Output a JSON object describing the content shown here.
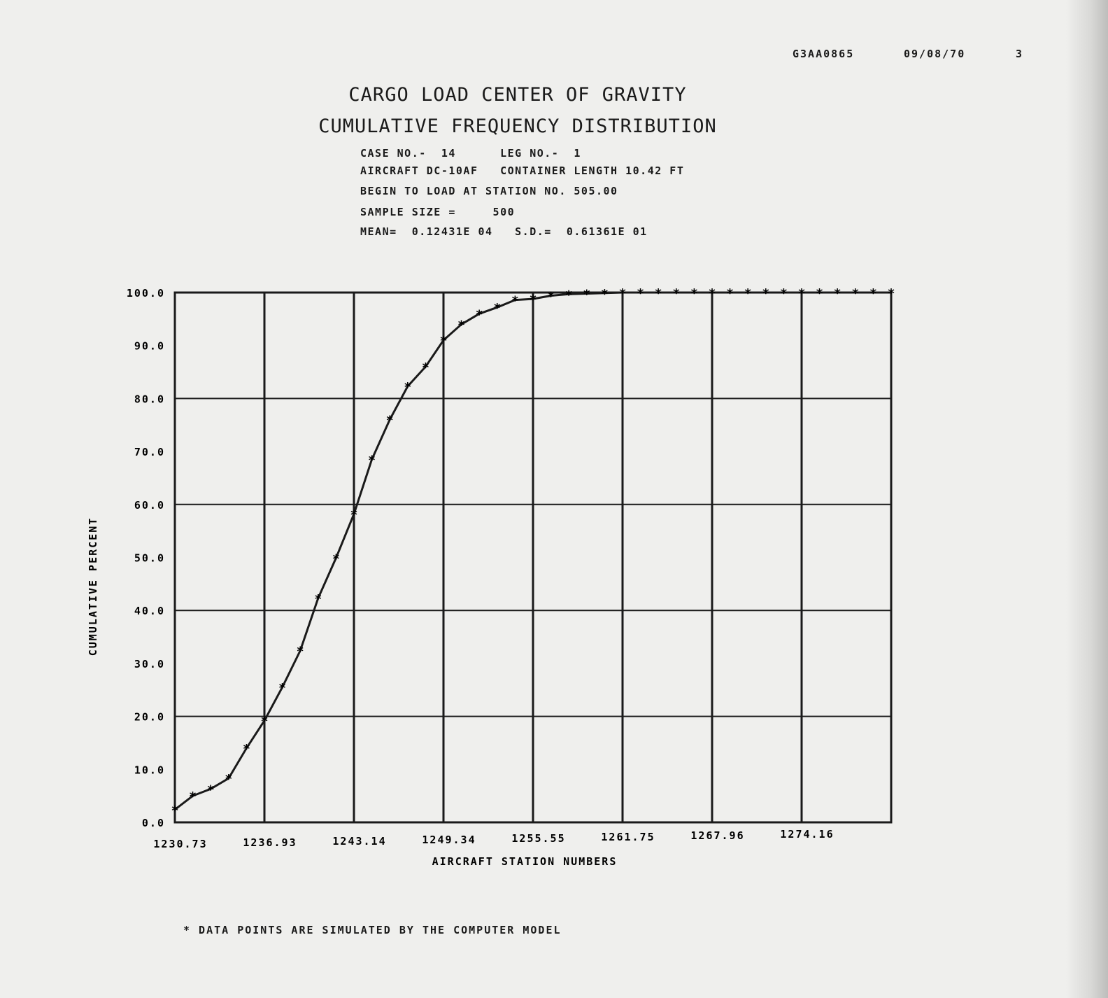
{
  "header": {
    "code": "G3AA0865",
    "date": "09/08/70",
    "page": "3"
  },
  "footnote": "* DATA POINTS ARE SIMULATED BY THE COMPUTER MODEL",
  "chart_data": {
    "type": "line",
    "title": "CARGO LOAD CENTER OF GRAVITY",
    "subtitle": "CUMULATIVE FREQUENCY DISTRIBUTION",
    "info_lines": [
      "CASE NO.-  14      LEG NO.-  1",
      "AIRCRAFT DC-10AF   CONTAINER LENGTH 10.42 FT",
      "BEGIN TO LOAD AT STATION NO. 505.00",
      "SAMPLE SIZE =     500",
      "MEAN=  0.12431E 04   S.D.=  0.61361E 01"
    ],
    "xlabel": "AIRCRAFT STATION NUMBERS",
    "ylabel": "CUMULATIVE PERCENT",
    "xlim": [
      1230.73,
      1280.37
    ],
    "ylim": [
      0,
      100
    ],
    "x_ticks": [
      "1230.73",
      "1236.93",
      "1243.14",
      "1249.34",
      "1255.55",
      "1261.75",
      "1267.96",
      "1274.16"
    ],
    "y_ticks": [
      "0.0",
      "10.0",
      "20.0",
      "30.0",
      "40.0",
      "50.0",
      "60.0",
      "70.0",
      "80.0",
      "90.0",
      "100.0"
    ],
    "grid": true,
    "marker": "asterisk",
    "x_start": 1230.73,
    "x_step": 1.241,
    "values": [
      2.4,
      5.0,
      6.3,
      8.3,
      14.0,
      19.2,
      25.5,
      32.4,
      42.3,
      49.9,
      58.2,
      68.5,
      76.0,
      82.3,
      86.0,
      91.0,
      94.0,
      96.0,
      97.2,
      98.6,
      98.8,
      99.4,
      99.7,
      99.8,
      99.9,
      100,
      100,
      100,
      100,
      100,
      100,
      100,
      100,
      100,
      100,
      100,
      100,
      100,
      100,
      100,
      100
    ]
  }
}
